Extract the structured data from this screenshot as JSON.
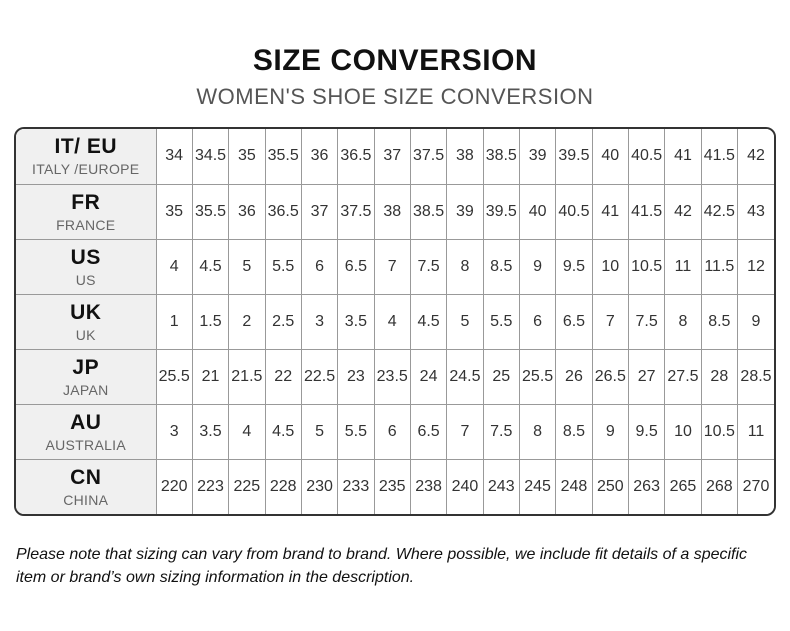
{
  "header": {
    "title": "SIZE CONVERSION",
    "subtitle": "WOMEN'S SHOE SIZE CONVERSION"
  },
  "table": {
    "rows": [
      {
        "code": "IT/ EU",
        "region": "ITALY /EUROPE",
        "values": [
          "34",
          "34.5",
          "35",
          "35.5",
          "36",
          "36.5",
          "37",
          "37.5",
          "38",
          "38.5",
          "39",
          "39.5",
          "40",
          "40.5",
          "41",
          "41.5",
          "42"
        ]
      },
      {
        "code": "FR",
        "region": "FRANCE",
        "values": [
          "35",
          "35.5",
          "36",
          "36.5",
          "37",
          "37.5",
          "38",
          "38.5",
          "39",
          "39.5",
          "40",
          "40.5",
          "41",
          "41.5",
          "42",
          "42.5",
          "43"
        ]
      },
      {
        "code": "US",
        "region": "US",
        "values": [
          "4",
          "4.5",
          "5",
          "5.5",
          "6",
          "6.5",
          "7",
          "7.5",
          "8",
          "8.5",
          "9",
          "9.5",
          "10",
          "10.5",
          "11",
          "11.5",
          "12"
        ]
      },
      {
        "code": "UK",
        "region": "UK",
        "values": [
          "1",
          "1.5",
          "2",
          "2.5",
          "3",
          "3.5",
          "4",
          "4.5",
          "5",
          "5.5",
          "6",
          "6.5",
          "7",
          "7.5",
          "8",
          "8.5",
          "9"
        ]
      },
      {
        "code": "JP",
        "region": "JAPAN",
        "values": [
          "25.5",
          "21",
          "21.5",
          "22",
          "22.5",
          "23",
          "23.5",
          "24",
          "24.5",
          "25",
          "25.5",
          "26",
          "26.5",
          "27",
          "27.5",
          "28",
          "28.5"
        ]
      },
      {
        "code": "AU",
        "region": "AUSTRALIA",
        "values": [
          "3",
          "3.5",
          "4",
          "4.5",
          "5",
          "5.5",
          "6",
          "6.5",
          "7",
          "7.5",
          "8",
          "8.5",
          "9",
          "9.5",
          "10",
          "10.5",
          "11"
        ]
      },
      {
        "code": "CN",
        "region": "CHINA",
        "values": [
          "220",
          "223",
          "225",
          "228",
          "230",
          "233",
          "235",
          "238",
          "240",
          "243",
          "245",
          "248",
          "250",
          "263",
          "265",
          "268",
          "270"
        ]
      }
    ]
  },
  "footer": {
    "note": "Please note that sizing can vary from brand to brand. Where possible, we include fit details of a specific item or brand’s own sizing information in the description."
  }
}
